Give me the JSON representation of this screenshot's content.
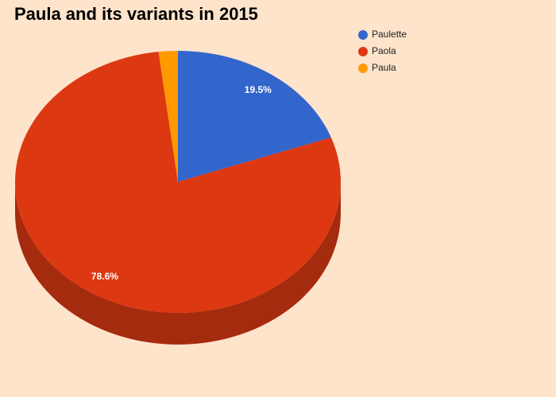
{
  "chart_data": {
    "type": "pie",
    "title": "Paula and its variants in 2015",
    "categories": [
      "Paulette",
      "Paola",
      "Paula"
    ],
    "values": [
      19.5,
      78.6,
      1.9
    ],
    "value_labels": [
      "19.5%",
      "78.6%",
      null
    ],
    "colors": [
      "#3366cc",
      "#dc3912",
      "#ff9900"
    ],
    "three_d": true,
    "legend": "top-right"
  }
}
